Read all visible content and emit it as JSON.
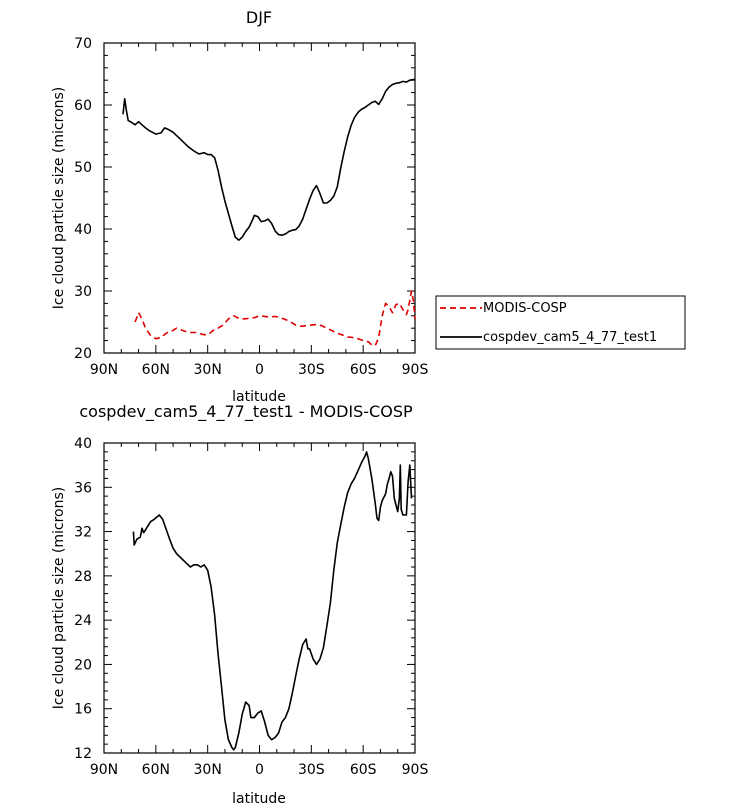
{
  "chart_data": [
    {
      "type": "line",
      "title": "DJF",
      "xlabel": "latitude",
      "ylabel": "Ice cloud particle size (microns)",
      "xlim": [
        90,
        -90
      ],
      "ylim": [
        20,
        70
      ],
      "xticks": [
        90,
        60,
        30,
        0,
        -30,
        -60,
        -90
      ],
      "xtick_labels": [
        "90N",
        "60N",
        "30N",
        "0",
        "30S",
        "60S",
        "90S"
      ],
      "yticks": [
        20,
        30,
        40,
        50,
        60,
        70
      ],
      "ytick_labels": [
        "20",
        "30",
        "40",
        "50",
        "60",
        "70"
      ],
      "grid": false,
      "legend_position": "right",
      "series": [
        {
          "name": "MODIS-COSP",
          "color": "#e00000",
          "dash": "dashed",
          "points": [
            [
              72,
              25.0
            ],
            [
              70,
              26.5
            ],
            [
              68,
              25.5
            ],
            [
              66,
              24.0
            ],
            [
              63,
              22.8
            ],
            [
              60,
              22.3
            ],
            [
              57,
              22.5
            ],
            [
              54,
              23.2
            ],
            [
              51,
              23.5
            ],
            [
              48,
              24.0
            ],
            [
              45,
              23.7
            ],
            [
              42,
              23.4
            ],
            [
              39,
              23.3
            ],
            [
              36,
              23.3
            ],
            [
              33,
              23.0
            ],
            [
              30,
              22.9
            ],
            [
              27,
              23.6
            ],
            [
              24,
              24.0
            ],
            [
              21,
              24.5
            ],
            [
              18,
              25.5
            ],
            [
              15,
              26.0
            ],
            [
              12,
              25.6
            ],
            [
              9,
              25.5
            ],
            [
              6,
              25.6
            ],
            [
              3,
              25.7
            ],
            [
              0,
              26.0
            ],
            [
              -3,
              25.9
            ],
            [
              -6,
              25.8
            ],
            [
              -9,
              25.9
            ],
            [
              -12,
              25.7
            ],
            [
              -15,
              25.4
            ],
            [
              -18,
              25.0
            ],
            [
              -21,
              24.5
            ],
            [
              -24,
              24.3
            ],
            [
              -27,
              24.4
            ],
            [
              -30,
              24.5
            ],
            [
              -33,
              24.6
            ],
            [
              -36,
              24.4
            ],
            [
              -39,
              24.0
            ],
            [
              -42,
              23.6
            ],
            [
              -45,
              23.2
            ],
            [
              -48,
              22.9
            ],
            [
              -51,
              22.6
            ],
            [
              -54,
              22.5
            ],
            [
              -57,
              22.3
            ],
            [
              -60,
              22.0
            ],
            [
              -63,
              21.8
            ],
            [
              -65,
              21.3
            ],
            [
              -67,
              21.2
            ],
            [
              -69,
              22.5
            ],
            [
              -71,
              26.0
            ],
            [
              -73,
              28.0
            ],
            [
              -75,
              27.5
            ],
            [
              -77,
              26.5
            ],
            [
              -79,
              27.8
            ],
            [
              -81,
              28.0
            ],
            [
              -83,
              27.0
            ],
            [
              -85,
              26.2
            ],
            [
              -86,
              27.0
            ],
            [
              -87,
              28.5
            ],
            [
              -88,
              30.0
            ],
            [
              -89,
              28.5
            ],
            [
              -90,
              25.5
            ]
          ]
        },
        {
          "name": "cospdev_cam5_4_77_test1",
          "color": "#000000",
          "dash": "solid",
          "points": [
            [
              79,
              58.5
            ],
            [
              78,
              61.0
            ],
            [
              77,
              59.0
            ],
            [
              76,
              57.5
            ],
            [
              74,
              57.2
            ],
            [
              72,
              56.8
            ],
            [
              70,
              57.3
            ],
            [
              68,
              56.8
            ],
            [
              66,
              56.3
            ],
            [
              64,
              55.9
            ],
            [
              62,
              55.6
            ],
            [
              60,
              55.3
            ],
            [
              57,
              55.5
            ],
            [
              55,
              56.3
            ],
            [
              53,
              56.1
            ],
            [
              50,
              55.6
            ],
            [
              47,
              54.8
            ],
            [
              44,
              54.0
            ],
            [
              41,
              53.2
            ],
            [
              38,
              52.6
            ],
            [
              35,
              52.1
            ],
            [
              32,
              52.3
            ],
            [
              30,
              52.0
            ],
            [
              28,
              52.0
            ],
            [
              26,
              51.5
            ],
            [
              24,
              49.5
            ],
            [
              22,
              46.8
            ],
            [
              20,
              44.5
            ],
            [
              18,
              42.5
            ],
            [
              16,
              40.5
            ],
            [
              14,
              38.7
            ],
            [
              12,
              38.2
            ],
            [
              10,
              38.7
            ],
            [
              8,
              39.6
            ],
            [
              6,
              40.3
            ],
            [
              4,
              41.5
            ],
            [
              3,
              42.2
            ],
            [
              1,
              42.0
            ],
            [
              -1,
              41.2
            ],
            [
              -3,
              41.3
            ],
            [
              -5,
              41.6
            ],
            [
              -7,
              40.9
            ],
            [
              -9,
              39.7
            ],
            [
              -11,
              39.1
            ],
            [
              -13,
              39.0
            ],
            [
              -15,
              39.2
            ],
            [
              -17,
              39.6
            ],
            [
              -19,
              39.8
            ],
            [
              -21,
              39.9
            ],
            [
              -23,
              40.5
            ],
            [
              -25,
              41.6
            ],
            [
              -27,
              43.2
            ],
            [
              -29,
              44.8
            ],
            [
              -31,
              46.2
            ],
            [
              -33,
              47.0
            ],
            [
              -35,
              45.7
            ],
            [
              -37,
              44.2
            ],
            [
              -39,
              44.2
            ],
            [
              -41,
              44.6
            ],
            [
              -43,
              45.3
            ],
            [
              -45,
              46.8
            ],
            [
              -47,
              49.8
            ],
            [
              -49,
              52.5
            ],
            [
              -51,
              54.8
            ],
            [
              -53,
              56.7
            ],
            [
              -55,
              58.0
            ],
            [
              -57,
              58.8
            ],
            [
              -59,
              59.3
            ],
            [
              -61,
              59.6
            ],
            [
              -63,
              60.0
            ],
            [
              -65,
              60.4
            ],
            [
              -67,
              60.6
            ],
            [
              -69,
              60.1
            ],
            [
              -71,
              61.0
            ],
            [
              -73,
              62.2
            ],
            [
              -75,
              62.9
            ],
            [
              -77,
              63.3
            ],
            [
              -79,
              63.5
            ],
            [
              -81,
              63.6
            ],
            [
              -83,
              63.8
            ],
            [
              -85,
              63.7
            ],
            [
              -87,
              64.0
            ],
            [
              -89,
              64.1
            ],
            [
              -90,
              64.1
            ]
          ]
        }
      ]
    },
    {
      "type": "line",
      "title": "cospdev_cam5_4_77_test1 - MODIS-COSP",
      "xlabel": "latitude",
      "ylabel": "Ice cloud particle size (microns)",
      "xlim": [
        90,
        -90
      ],
      "ylim": [
        12,
        40
      ],
      "xticks": [
        90,
        60,
        30,
        0,
        -30,
        -60,
        -90
      ],
      "xtick_labels": [
        "90N",
        "60N",
        "30N",
        "0",
        "30S",
        "60S",
        "90S"
      ],
      "yticks": [
        12,
        16,
        20,
        24,
        28,
        32,
        36,
        40
      ],
      "ytick_labels": [
        "12",
        "16",
        "20",
        "24",
        "28",
        "32",
        "36",
        "40"
      ],
      "grid": false,
      "series": [
        {
          "color": "#000000",
          "dash": "solid",
          "points": [
            [
              73,
              32.0
            ],
            [
              72.5,
              30.8
            ],
            [
              71,
              31.3
            ],
            [
              69,
              31.5
            ],
            [
              68,
              32.3
            ],
            [
              67,
              31.9
            ],
            [
              65,
              32.4
            ],
            [
              63,
              32.9
            ],
            [
              61,
              33.1
            ],
            [
              58,
              33.5
            ],
            [
              56,
              33.1
            ],
            [
              54,
              32.2
            ],
            [
              52,
              31.3
            ],
            [
              50,
              30.5
            ],
            [
              48,
              30.0
            ],
            [
              46,
              29.7
            ],
            [
              44,
              29.4
            ],
            [
              42,
              29.1
            ],
            [
              40,
              28.8
            ],
            [
              38,
              29.0
            ],
            [
              36,
              29.0
            ],
            [
              34,
              28.8
            ],
            [
              32,
              29.0
            ],
            [
              30,
              28.5
            ],
            [
              28,
              27.0
            ],
            [
              26,
              24.5
            ],
            [
              24,
              21.0
            ],
            [
              22,
              18.0
            ],
            [
              20,
              15.0
            ],
            [
              18,
              13.2
            ],
            [
              16,
              12.5
            ],
            [
              15,
              12.3
            ],
            [
              14,
              12.5
            ],
            [
              12,
              13.8
            ],
            [
              10,
              15.5
            ],
            [
              8,
              16.6
            ],
            [
              6,
              16.3
            ],
            [
              5,
              15.2
            ],
            [
              3,
              15.2
            ],
            [
              1,
              15.6
            ],
            [
              -1,
              15.8
            ],
            [
              -3,
              14.8
            ],
            [
              -5,
              13.6
            ],
            [
              -7,
              13.2
            ],
            [
              -9,
              13.4
            ],
            [
              -11,
              13.8
            ],
            [
              -13,
              14.8
            ],
            [
              -15,
              15.2
            ],
            [
              -17,
              16.0
            ],
            [
              -19,
              17.4
            ],
            [
              -21,
              19.0
            ],
            [
              -23,
              20.5
            ],
            [
              -25,
              21.8
            ],
            [
              -27,
              22.3
            ],
            [
              -28,
              21.4
            ],
            [
              -29,
              21.4
            ],
            [
              -31,
              20.5
            ],
            [
              -33,
              20.0
            ],
            [
              -35,
              20.5
            ],
            [
              -37,
              21.5
            ],
            [
              -39,
              23.5
            ],
            [
              -41,
              25.5
            ],
            [
              -43,
              28.5
            ],
            [
              -45,
              31.0
            ],
            [
              -47,
              32.6
            ],
            [
              -49,
              34.2
            ],
            [
              -51,
              35.5
            ],
            [
              -53,
              36.3
            ],
            [
              -55,
              36.8
            ],
            [
              -57,
              37.5
            ],
            [
              -59,
              38.2
            ],
            [
              -61,
              38.8
            ],
            [
              -62,
              39.2
            ],
            [
              -63,
              38.6
            ],
            [
              -65,
              36.8
            ],
            [
              -67,
              34.5
            ],
            [
              -68,
              33.2
            ],
            [
              -69,
              33.0
            ],
            [
              -70,
              34.2
            ],
            [
              -71,
              34.8
            ],
            [
              -73,
              35.4
            ],
            [
              -74,
              36.3
            ],
            [
              -75,
              36.8
            ],
            [
              -76,
              37.4
            ],
            [
              -77,
              37.0
            ],
            [
              -78,
              35.0
            ],
            [
              -79,
              34.4
            ],
            [
              -80,
              33.8
            ],
            [
              -81,
              35.0
            ],
            [
              -81.5,
              38.0
            ],
            [
              -82,
              34.0
            ],
            [
              -83,
              33.5
            ],
            [
              -85,
              33.5
            ],
            [
              -86,
              36.5
            ],
            [
              -87,
              38.0
            ],
            [
              -88,
              35.0
            ]
          ]
        }
      ]
    }
  ]
}
